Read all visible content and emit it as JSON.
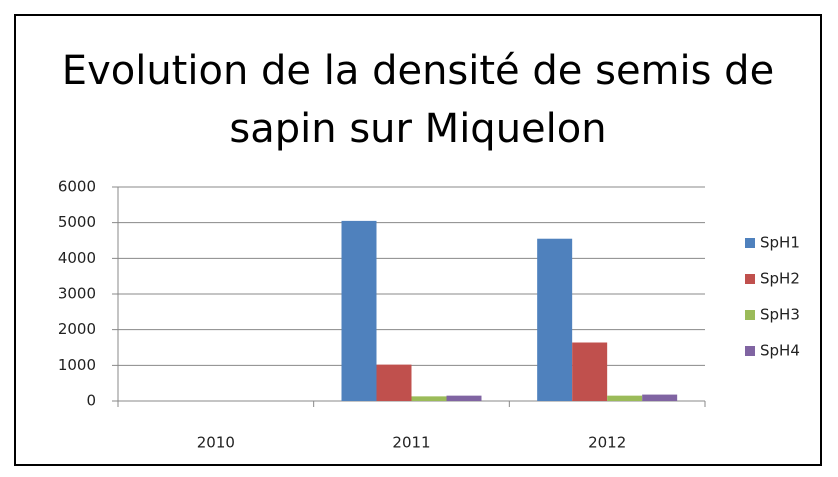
{
  "chart_data": {
    "type": "bar",
    "title": "Evolution de la densité de semis de sapin sur Miquelon",
    "categories": [
      "2010",
      "2011",
      "2012"
    ],
    "series": [
      {
        "name": "SpH1",
        "color": "#4f81bd",
        "values": [
          0,
          5050,
          4550
        ]
      },
      {
        "name": "SpH2",
        "color": "#c0504d",
        "values": [
          0,
          1020,
          1640
        ]
      },
      {
        "name": "SpH3",
        "color": "#9bbb59",
        "values": [
          0,
          130,
          150
        ]
      },
      {
        "name": "SpH4",
        "color": "#8064a2",
        "values": [
          0,
          150,
          180
        ]
      }
    ],
    "ylim": [
      0,
      6000
    ],
    "yticks": [
      0,
      1000,
      2000,
      3000,
      4000,
      5000,
      6000
    ],
    "grid": true,
    "legend": "right"
  }
}
